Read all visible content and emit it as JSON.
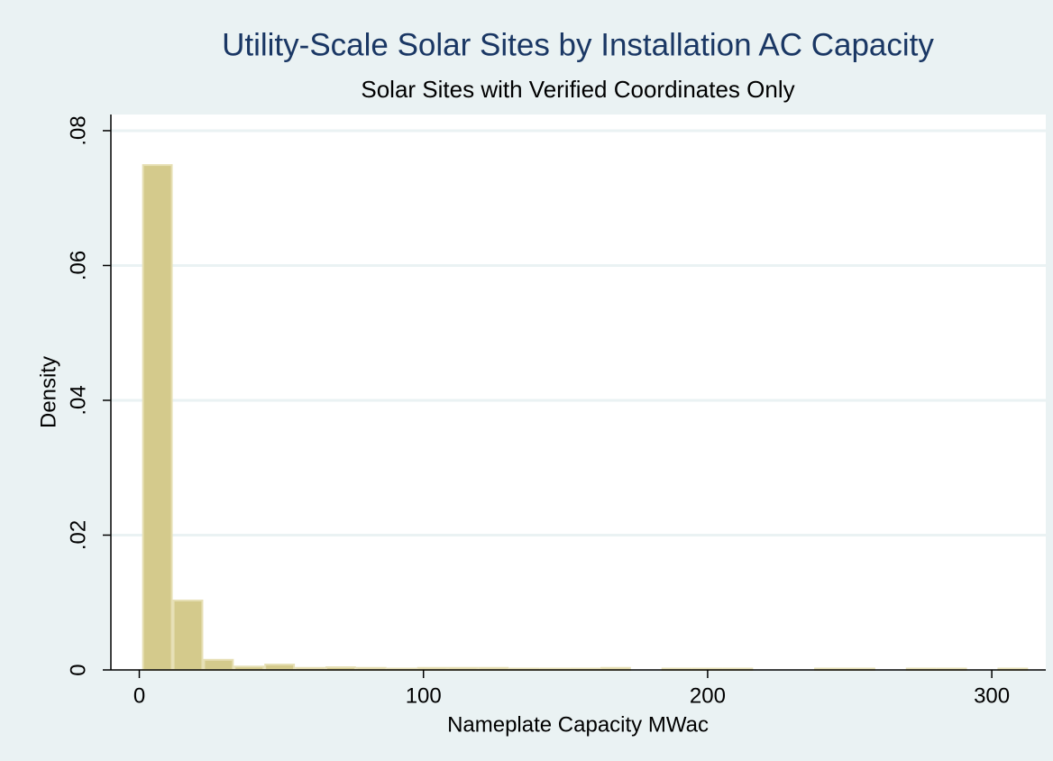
{
  "chart_data": {
    "type": "histogram",
    "title": "Utility-Scale Solar Sites by Installation AC Capacity",
    "subtitle": "Solar Sites with Verified Coordinates Only",
    "x_label": "Nameplate Capacity MWac",
    "y_label": "Density",
    "bins": [
      1,
      11.75,
      22.5,
      33.25,
      44,
      54.75,
      65.5,
      76.25,
      87,
      97.75,
      108.5,
      119.25,
      130,
      140.75,
      151.5,
      162.25,
      173,
      183.75,
      194.5,
      205.25,
      216,
      226.75,
      237.5,
      248.25,
      259,
      269.75,
      280.5,
      291.25,
      302,
      312.75
    ],
    "values": [
      0.0749,
      0.0103,
      0.0015,
      0.0005,
      0.0008,
      0.0003,
      0.0004,
      0.0003,
      0.0002,
      0.0003,
      0.0003,
      0.0003,
      0.0002,
      0.0002,
      0.0002,
      0.0003,
      0,
      0.0002,
      0.0002,
      0.0002,
      0,
      0,
      0.0002,
      0.0002,
      0,
      0.0002,
      0.0002,
      0,
      0.0002
    ],
    "color": "#d4ca8c",
    "edge_color": "#e6dfb4",
    "xlim": [
      -10,
      319
    ],
    "ylim": [
      0,
      0.0824
    ],
    "xticks": [
      0,
      100,
      200,
      300
    ],
    "yticks": [
      0,
      {
        "value": 0.02,
        "label": ".02"
      },
      {
        "value": 0.04,
        "label": ".04"
      },
      {
        "value": 0.06,
        "label": ".06"
      },
      {
        "value": 0.08,
        "label": ".08"
      }
    ],
    "grid": true
  }
}
